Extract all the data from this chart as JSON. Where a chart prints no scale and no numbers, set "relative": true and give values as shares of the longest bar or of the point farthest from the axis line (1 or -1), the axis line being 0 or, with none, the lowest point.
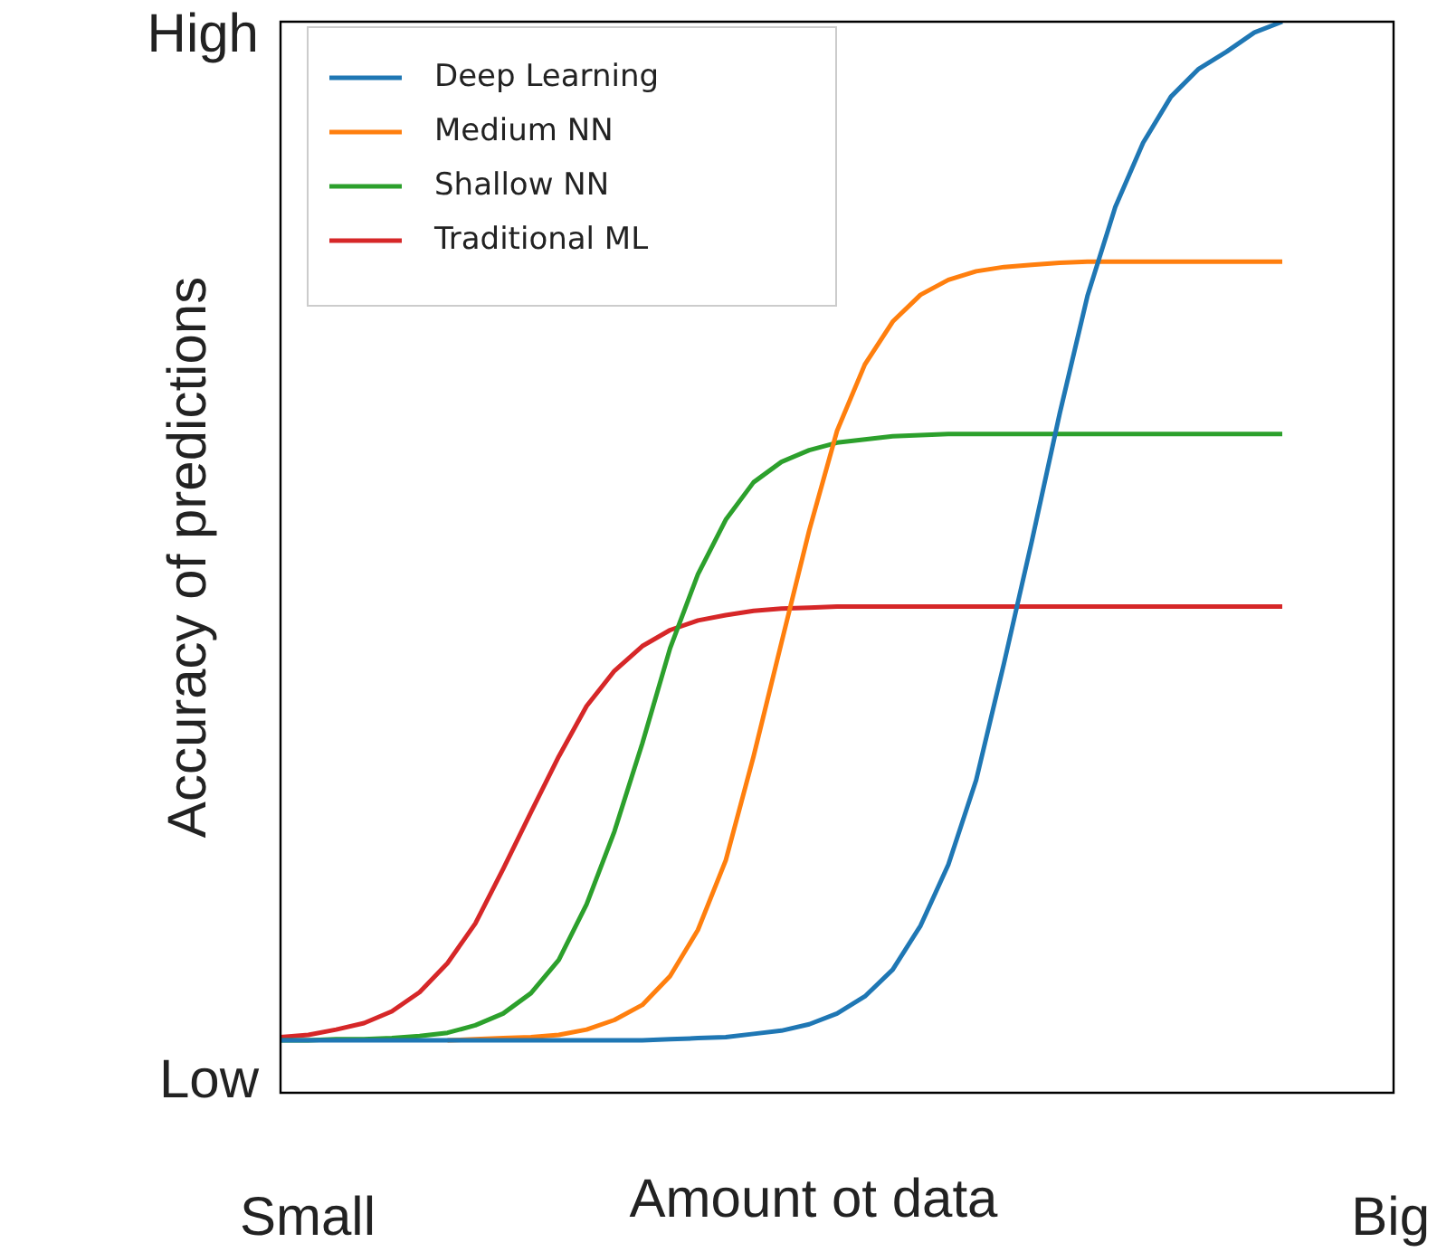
{
  "chart_data": {
    "type": "line",
    "relative": true,
    "xlabel": "Amount ot data",
    "ylabel": "Accuracy of predictions",
    "legend": "top left",
    "marker": "none",
    "line_style": "solid",
    "categories": [
      null,
      null,
      null,
      null,
      null,
      null,
      null,
      null,
      null,
      null,
      null,
      null,
      null,
      null,
      null,
      null,
      null,
      null,
      null,
      null,
      null,
      null,
      null,
      null,
      null,
      null,
      null,
      null,
      null,
      null,
      null,
      null,
      null,
      null,
      null,
      null,
      null,
      null,
      null,
      null,
      null
    ],
    "annotations": [
      "High",
      "Low",
      "Small",
      "Big"
    ],
    "series": [
      {
        "name": "Deep Learning",
        "color": "#1f77b4",
        "values": [
          0.049,
          0.049,
          0.049,
          0.049,
          0.049,
          0.049,
          0.049,
          0.049,
          0.049,
          0.049,
          0.049,
          0.049,
          0.049,
          0.049,
          0.05,
          0.051,
          0.052,
          0.055,
          0.058,
          0.064,
          0.074,
          0.09,
          0.115,
          0.156,
          0.213,
          0.292,
          0.401,
          0.515,
          0.634,
          0.744,
          0.827,
          0.887,
          0.93,
          0.956,
          0.972,
          0.99,
          1,
          null,
          null,
          null,
          null
        ]
      },
      {
        "name": "Medium NN",
        "color": "#ff7f0e",
        "values": [
          null,
          null,
          null,
          null,
          null,
          null,
          0.049,
          0.05,
          0.051,
          0.052,
          0.054,
          0.059,
          0.068,
          0.082,
          0.109,
          0.152,
          0.217,
          0.314,
          0.42,
          0.525,
          0.618,
          0.68,
          0.72,
          0.745,
          0.759,
          0.767,
          0.771,
          0.773,
          0.775,
          0.776,
          0.776,
          0.776,
          0.776,
          0.776,
          0.776,
          0.776,
          0.776,
          null,
          null,
          null,
          null
        ]
      },
      {
        "name": "Shallow NN",
        "color": "#2ca02c",
        "values": [
          0.049,
          0.049,
          0.05,
          0.05,
          0.051,
          0.053,
          0.056,
          0.063,
          0.074,
          0.093,
          0.124,
          0.176,
          0.244,
          0.326,
          0.415,
          0.484,
          0.535,
          0.57,
          0.589,
          0.6,
          0.607,
          0.61,
          0.613,
          0.614,
          0.615,
          0.615,
          0.615,
          0.615,
          0.615,
          0.615,
          0.615,
          0.615,
          0.615,
          0.615,
          0.615,
          0.615,
          0.615,
          null,
          null,
          null,
          null
        ]
      },
      {
        "name": "Traditional ML",
        "color": "#d62728",
        "values": [
          0.052,
          0.054,
          0.059,
          0.065,
          0.076,
          0.094,
          0.121,
          0.158,
          0.209,
          0.262,
          0.314,
          0.361,
          0.394,
          0.417,
          0.432,
          0.441,
          0.446,
          0.45,
          0.452,
          0.453,
          0.454,
          0.454,
          0.454,
          0.454,
          0.454,
          0.454,
          0.454,
          0.454,
          0.454,
          0.454,
          0.454,
          0.454,
          0.454,
          0.454,
          0.454,
          0.454,
          0.454,
          null,
          null,
          null,
          null
        ]
      }
    ]
  }
}
